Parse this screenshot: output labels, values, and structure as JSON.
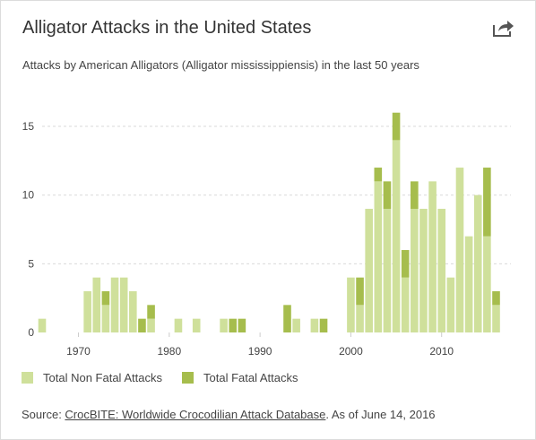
{
  "title": "Alligator Attacks in the United States",
  "subtitle": "Attacks by American Alligators (Alligator mississippiensis) in the last 50 years",
  "share_icon": "share-arrow-icon",
  "colors": {
    "non_fatal": "#cfe09b",
    "fatal": "#a6bd4d",
    "grid": "#d9d9d9",
    "text": "#444444"
  },
  "legend": {
    "non_fatal_label": "Total Non Fatal Attacks",
    "fatal_label": "Total Fatal Attacks"
  },
  "source": {
    "prefix": "Source: ",
    "link_text": "CrocBITE: Worldwide Crocodilian Attack Database",
    "suffix": ". As of June 14, 2016"
  },
  "chart_data": {
    "type": "bar",
    "stacked": true,
    "x": [
      1966,
      1967,
      1968,
      1969,
      1970,
      1971,
      1972,
      1973,
      1974,
      1975,
      1976,
      1977,
      1978,
      1979,
      1980,
      1981,
      1982,
      1983,
      1984,
      1985,
      1986,
      1987,
      1988,
      1989,
      1990,
      1991,
      1992,
      1993,
      1994,
      1995,
      1996,
      1997,
      1998,
      1999,
      2000,
      2001,
      2002,
      2003,
      2004,
      2005,
      2006,
      2007,
      2008,
      2009,
      2010,
      2011,
      2012,
      2013,
      2014,
      2015,
      2016
    ],
    "series": [
      {
        "name": "Total Non Fatal Attacks",
        "values": [
          1,
          0,
          0,
          0,
          0,
          3,
          4,
          2,
          4,
          4,
          3,
          0,
          1,
          0,
          0,
          1,
          0,
          1,
          0,
          0,
          1,
          0,
          0,
          0,
          0,
          0,
          0,
          0,
          1,
          0,
          1,
          0,
          0,
          0,
          4,
          2,
          9,
          11,
          9,
          14,
          4,
          9,
          9,
          11,
          9,
          4,
          12,
          7,
          10,
          7,
          2
        ]
      },
      {
        "name": "Total Fatal Attacks",
        "values": [
          0,
          0,
          0,
          0,
          0,
          0,
          0,
          1,
          0,
          0,
          0,
          1,
          1,
          0,
          0,
          0,
          0,
          0,
          0,
          0,
          0,
          1,
          1,
          0,
          0,
          0,
          0,
          2,
          0,
          0,
          0,
          1,
          0,
          0,
          0,
          2,
          0,
          1,
          2,
          2,
          2,
          2,
          0,
          0,
          0,
          0,
          0,
          0,
          0,
          5,
          1
        ]
      }
    ],
    "xticks": [
      "1970",
      "1980",
      "1990",
      "2000",
      "2010"
    ],
    "yticks": [
      "0",
      "5",
      "10",
      "15"
    ],
    "xlabel": "",
    "ylabel": "",
    "ylim": [
      0,
      16.8
    ],
    "xlim": [
      1966,
      2016
    ],
    "grid": "horizontal-dashed",
    "legend_position": "bottom-left"
  }
}
